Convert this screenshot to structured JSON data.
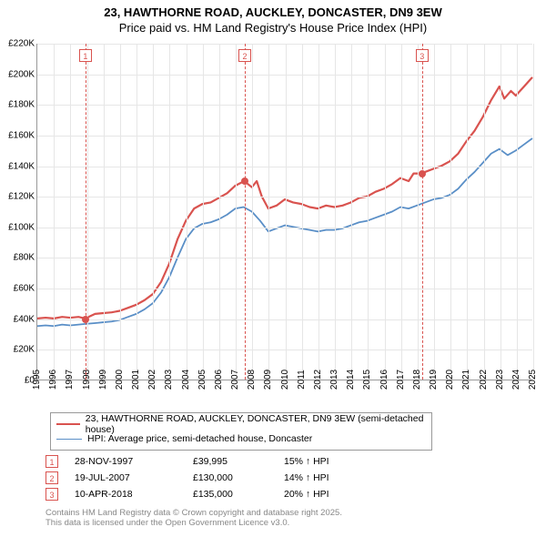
{
  "title_line1": "23, HAWTHORNE ROAD, AUCKLEY, DONCASTER, DN9 3EW",
  "title_line2": "Price paid vs. HM Land Registry's House Price Index (HPI)",
  "chart": {
    "type": "line",
    "background_color": "#ffffff",
    "grid_color": "#e6e6e6",
    "axis_color": "#999999",
    "y_axis": {
      "min": 0,
      "max": 220000,
      "tick_step": 20000,
      "label_prefix": "£",
      "label_suffix": "K",
      "label_fontsize": 10,
      "ticks": [
        "£0",
        "£20K",
        "£40K",
        "£60K",
        "£80K",
        "£100K",
        "£120K",
        "£140K",
        "£160K",
        "£180K",
        "£200K",
        "£220K"
      ]
    },
    "x_axis": {
      "min": 1995,
      "max": 2025,
      "tick_step": 1,
      "label_fontsize": 10,
      "ticks": [
        "1995",
        "1996",
        "1997",
        "1998",
        "1999",
        "2000",
        "2001",
        "2002",
        "2003",
        "2004",
        "2005",
        "2006",
        "2007",
        "2008",
        "2009",
        "2010",
        "2011",
        "2012",
        "2013",
        "2014",
        "2015",
        "2016",
        "2017",
        "2018",
        "2019",
        "2020",
        "2021",
        "2022",
        "2023",
        "2024",
        "2025"
      ]
    },
    "series": [
      {
        "name": "23, HAWTHORNE ROAD, AUCKLEY, DONCASTER, DN9 3EW (semi-detached house)",
        "color": "#d9534f",
        "line_width": 2.2,
        "points": [
          [
            1995.0,
            40000
          ],
          [
            1995.5,
            40500
          ],
          [
            1996.0,
            40000
          ],
          [
            1996.5,
            41000
          ],
          [
            1997.0,
            40500
          ],
          [
            1997.5,
            41000
          ],
          [
            1997.9,
            39995
          ],
          [
            1998.5,
            43000
          ],
          [
            1999.0,
            43500
          ],
          [
            1999.5,
            44000
          ],
          [
            2000.0,
            45000
          ],
          [
            2000.5,
            47000
          ],
          [
            2001.0,
            49000
          ],
          [
            2001.5,
            52000
          ],
          [
            2002.0,
            56000
          ],
          [
            2002.5,
            64000
          ],
          [
            2003.0,
            76000
          ],
          [
            2003.5,
            92000
          ],
          [
            2004.0,
            104000
          ],
          [
            2004.5,
            112000
          ],
          [
            2005.0,
            115000
          ],
          [
            2005.5,
            116000
          ],
          [
            2006.0,
            119000
          ],
          [
            2006.5,
            122000
          ],
          [
            2007.0,
            127000
          ],
          [
            2007.54,
            130000
          ],
          [
            2008.0,
            126000
          ],
          [
            2008.3,
            130000
          ],
          [
            2008.6,
            120000
          ],
          [
            2009.0,
            112000
          ],
          [
            2009.5,
            114000
          ],
          [
            2010.0,
            118000
          ],
          [
            2010.5,
            116000
          ],
          [
            2011.0,
            115000
          ],
          [
            2011.5,
            113000
          ],
          [
            2012.0,
            112000
          ],
          [
            2012.5,
            114000
          ],
          [
            2013.0,
            113000
          ],
          [
            2013.5,
            114000
          ],
          [
            2014.0,
            116000
          ],
          [
            2014.5,
            119000
          ],
          [
            2015.0,
            120000
          ],
          [
            2015.5,
            123000
          ],
          [
            2016.0,
            125000
          ],
          [
            2016.5,
            128000
          ],
          [
            2017.0,
            132000
          ],
          [
            2017.5,
            130000
          ],
          [
            2017.8,
            135000
          ],
          [
            2018.27,
            135000
          ],
          [
            2018.5,
            136000
          ],
          [
            2019.0,
            138000
          ],
          [
            2019.5,
            140000
          ],
          [
            2020.0,
            143000
          ],
          [
            2020.5,
            148000
          ],
          [
            2021.0,
            156000
          ],
          [
            2021.5,
            163000
          ],
          [
            2022.0,
            172000
          ],
          [
            2022.5,
            183000
          ],
          [
            2023.0,
            192000
          ],
          [
            2023.3,
            184000
          ],
          [
            2023.7,
            189000
          ],
          [
            2024.0,
            186000
          ],
          [
            2024.5,
            192000
          ],
          [
            2025.0,
            198000
          ]
        ]
      },
      {
        "name": "HPI: Average price, semi-detached house, Doncaster",
        "color": "#5a8fc7",
        "line_width": 1.8,
        "points": [
          [
            1995.0,
            35000
          ],
          [
            1995.5,
            35500
          ],
          [
            1996.0,
            35000
          ],
          [
            1996.5,
            36000
          ],
          [
            1997.0,
            35500
          ],
          [
            1997.5,
            36000
          ],
          [
            1998.0,
            36500
          ],
          [
            1998.5,
            37000
          ],
          [
            1999.0,
            37500
          ],
          [
            1999.5,
            38000
          ],
          [
            2000.0,
            39000
          ],
          [
            2000.5,
            41000
          ],
          [
            2001.0,
            43000
          ],
          [
            2001.5,
            46000
          ],
          [
            2002.0,
            50000
          ],
          [
            2002.5,
            57000
          ],
          [
            2003.0,
            67000
          ],
          [
            2003.5,
            80000
          ],
          [
            2004.0,
            92000
          ],
          [
            2004.5,
            99000
          ],
          [
            2005.0,
            102000
          ],
          [
            2005.5,
            103000
          ],
          [
            2006.0,
            105000
          ],
          [
            2006.5,
            108000
          ],
          [
            2007.0,
            112000
          ],
          [
            2007.5,
            113000
          ],
          [
            2008.0,
            110000
          ],
          [
            2008.5,
            104000
          ],
          [
            2009.0,
            97000
          ],
          [
            2009.5,
            99000
          ],
          [
            2010.0,
            101000
          ],
          [
            2010.5,
            100000
          ],
          [
            2011.0,
            99000
          ],
          [
            2011.5,
            98000
          ],
          [
            2012.0,
            97000
          ],
          [
            2012.5,
            98000
          ],
          [
            2013.0,
            98000
          ],
          [
            2013.5,
            99000
          ],
          [
            2014.0,
            101000
          ],
          [
            2014.5,
            103000
          ],
          [
            2015.0,
            104000
          ],
          [
            2015.5,
            106000
          ],
          [
            2016.0,
            108000
          ],
          [
            2016.5,
            110000
          ],
          [
            2017.0,
            113000
          ],
          [
            2017.5,
            112000
          ],
          [
            2018.0,
            114000
          ],
          [
            2018.5,
            116000
          ],
          [
            2019.0,
            118000
          ],
          [
            2019.5,
            119000
          ],
          [
            2020.0,
            121000
          ],
          [
            2020.5,
            125000
          ],
          [
            2021.0,
            131000
          ],
          [
            2021.5,
            136000
          ],
          [
            2022.0,
            142000
          ],
          [
            2022.5,
            148000
          ],
          [
            2023.0,
            151000
          ],
          [
            2023.5,
            147000
          ],
          [
            2024.0,
            150000
          ],
          [
            2024.5,
            154000
          ],
          [
            2025.0,
            158000
          ]
        ]
      }
    ],
    "markers": [
      {
        "num": "1",
        "year": 1997.91,
        "value": 39995
      },
      {
        "num": "2",
        "year": 2007.55,
        "value": 130000
      },
      {
        "num": "3",
        "year": 2018.27,
        "value": 135000
      }
    ],
    "marker_line_color": "#d9534f",
    "marker_dot_color": "#d9534f"
  },
  "legend": {
    "items": [
      {
        "color": "#d9534f",
        "width": 2.2,
        "label": "23, HAWTHORNE ROAD, AUCKLEY, DONCASTER, DN9 3EW (semi-detached house)"
      },
      {
        "color": "#5a8fc7",
        "width": 1.8,
        "label": "HPI: Average price, semi-detached house, Doncaster"
      }
    ]
  },
  "sales": [
    {
      "num": "1",
      "date": "28-NOV-1997",
      "price": "£39,995",
      "hpi": "15% ↑ HPI"
    },
    {
      "num": "2",
      "date": "19-JUL-2007",
      "price": "£130,000",
      "hpi": "14% ↑ HPI"
    },
    {
      "num": "3",
      "date": "10-APR-2018",
      "price": "£135,000",
      "hpi": "20% ↑ HPI"
    }
  ],
  "attribution_line1": "Contains HM Land Registry data © Crown copyright and database right 2025.",
  "attribution_line2": "This data is licensed under the Open Government Licence v3.0."
}
